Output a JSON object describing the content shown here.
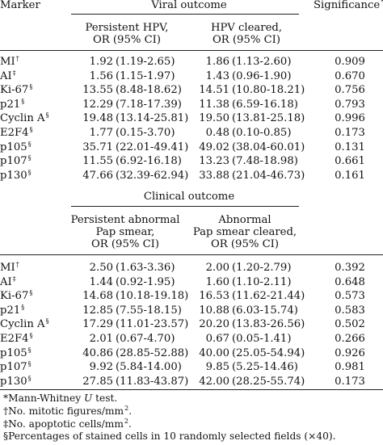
{
  "columns": {
    "marker": "Marker",
    "significance": "Significance",
    "significance_mark": "*"
  },
  "viral": {
    "title": "Viral outcome",
    "col1": [
      "Persistent HPV,",
      "OR (95% CI)"
    ],
    "col2": [
      "HPV cleared,",
      "OR (95% CI)"
    ],
    "rows": [
      {
        "marker": "MI",
        "sup": "†",
        "or1": "1.92",
        "ci1": "(1.19-2.65)",
        "or2": "1.86",
        "ci2": "(1.13-2.60)",
        "sig": "0.909"
      },
      {
        "marker": "AI",
        "sup": "‡",
        "or1": "1.56",
        "ci1": "(1.15-1.97)",
        "or2": "1.43",
        "ci2": "(0.96-1.90)",
        "sig": "0.670"
      },
      {
        "marker": "Ki-67",
        "sup": "§",
        "or1": "13.55",
        "ci1": "(8.48-18.62)",
        "or2": "14.51",
        "ci2": "(10.80-18.21)",
        "sig": "0.756"
      },
      {
        "marker": "p21",
        "sup": "§",
        "or1": "12.29",
        "ci1": "(7.18-17.39)",
        "or2": "11.38",
        "ci2": "(6.59-16.18)",
        "sig": "0.793"
      },
      {
        "marker": "Cyclin A",
        "sup": "§",
        "or1": "19.48",
        "ci1": "(13.14-25.81)",
        "or2": "19.50",
        "ci2": "(13.81-25.18)",
        "sig": "0.996"
      },
      {
        "marker": "E2F4",
        "sup": "§",
        "or1": "1.77",
        "ci1": "(0.15-3.70)",
        "or2": "0.48",
        "ci2": "(0.10-0.85)",
        "sig": "0.173"
      },
      {
        "marker": "p105",
        "sup": "§",
        "or1": "35.71",
        "ci1": "(22.01-49.41)",
        "or2": "49.02",
        "ci2": "(38.04-60.01)",
        "sig": "0.131"
      },
      {
        "marker": "p107",
        "sup": "§",
        "or1": "11.55",
        "ci1": "(6.92-16.18)",
        "or2": "13.23",
        "ci2": "(7.48-18.98)",
        "sig": "0.661"
      },
      {
        "marker": "p130",
        "sup": "§",
        "or1": "47.66",
        "ci1": "(32.39-62.94)",
        "or2": "33.88",
        "ci2": "(21.04-46.73)",
        "sig": "0.161"
      }
    ]
  },
  "clinical": {
    "title": "Clinical outcome",
    "col1": [
      "Persistent abnormal",
      "Pap smear,",
      "OR (95% CI)"
    ],
    "col2": [
      "Abnormal",
      "Pap smear cleared,",
      "OR (95% CI)"
    ],
    "rows": [
      {
        "marker": "MI",
        "sup": "†",
        "or1": "2.50",
        "ci1": "(1.63-3.36)",
        "or2": "2.00",
        "ci2": "(1.20-2.79)",
        "sig": "0.392"
      },
      {
        "marker": "AI",
        "sup": "‡",
        "or1": "1.44",
        "ci1": "(0.92-1.95)",
        "or2": "1.60",
        "ci2": "(1.10-2.11)",
        "sig": "0.648"
      },
      {
        "marker": "Ki-67",
        "sup": "§",
        "or1": "14.68",
        "ci1": "(10.18-19.18)",
        "or2": "16.53",
        "ci2": "(11.62-21.44)",
        "sig": "0.573"
      },
      {
        "marker": "p21",
        "sup": "§",
        "or1": "12.85",
        "ci1": "(7.55-18.15)",
        "or2": "10.88",
        "ci2": "(6.03-15.74)",
        "sig": "0.583"
      },
      {
        "marker": "Cyclin A",
        "sup": "§",
        "or1": "17.29",
        "ci1": "(11.01-23.57)",
        "or2": "20.20",
        "ci2": "(13.83-26.56)",
        "sig": "0.502"
      },
      {
        "marker": "E2F4",
        "sup": "§",
        "or1": "2.01",
        "ci1": "(0.67-4.70)",
        "or2": "0.67",
        "ci2": "(0.05-1.41)",
        "sig": "0.266"
      },
      {
        "marker": "p105",
        "sup": "§",
        "or1": "40.86",
        "ci1": "(28.85-52.88)",
        "or2": "40.00",
        "ci2": "(25.05-54.94)",
        "sig": "0.926"
      },
      {
        "marker": "p107",
        "sup": "§",
        "or1": "9.92",
        "ci1": "(5.84-14.00)",
        "or2": "9.85",
        "ci2": "(5.25-14.46)",
        "sig": "0.981"
      },
      {
        "marker": "p130",
        "sup": "§",
        "or1": "27.85",
        "ci1": "(11.83-43.87)",
        "or2": "42.00",
        "ci2": "(28.25-55.74)",
        "sig": "0.173"
      }
    ]
  },
  "footnotes": [
    {
      "mark": "*",
      "text": "Mann-Whitney ",
      "italic": "U",
      "after": " test.",
      "sup": ""
    },
    {
      "mark": "†",
      "text": "No. mitotic figures/mm",
      "italic": "",
      "after": ".",
      "sup": "2"
    },
    {
      "mark": "‡",
      "text": "No. apoptotic cells/mm",
      "italic": "",
      "after": ".",
      "sup": "2"
    },
    {
      "mark": "§",
      "text": "Percentages of stained cells in 10 randomly selected fields (×40).",
      "italic": "",
      "after": "",
      "sup": ""
    }
  ]
}
